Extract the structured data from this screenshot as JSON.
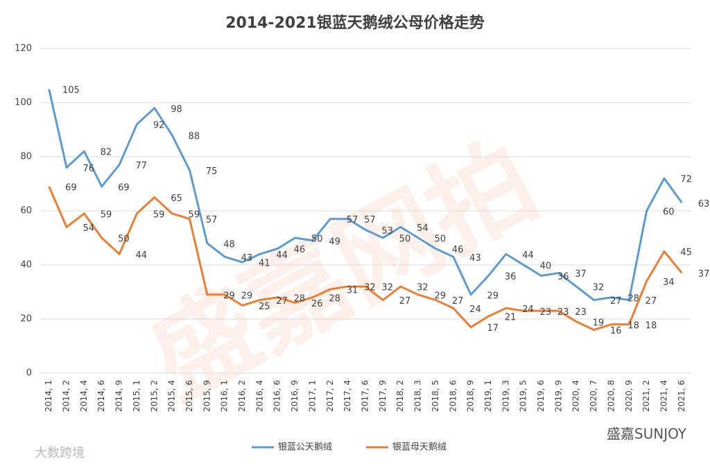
{
  "chart_data": {
    "type": "line",
    "title": "2014-2021银蓝天鹅绒公母价格走势",
    "categories": [
      "2014, 1",
      "2014, 2",
      "2014, 4",
      "2014, 6",
      "2014, 9",
      "2015, 1",
      "2015, 2",
      "2015, 4",
      "2015, 6",
      "2015, 9",
      "2016, 1",
      "2016, 2",
      "2016, 4",
      "2016, 6",
      "2016, 9",
      "2017, 1",
      "2017, 2",
      "2017, 4",
      "2017, 6",
      "2017, 9",
      "2018, 2",
      "2018, 3",
      "2018, 5",
      "2018, 6",
      "2018, 9",
      "2019, 1",
      "2019, 3",
      "2019, 5",
      "2019, 6",
      "2019, 9",
      "2020, 4",
      "2020, 7",
      "2020, 8",
      "2020, 9",
      "2021, 2",
      "2021, 4",
      "2021, 6"
    ],
    "series": [
      {
        "name": "银蓝公天鹅绒",
        "color": "#5b9bd5",
        "values": [
          105,
          76,
          82,
          69,
          77,
          92,
          98,
          88,
          75,
          48,
          43,
          41,
          44,
          46,
          50,
          49,
          57,
          57,
          53,
          50,
          54,
          50,
          46,
          43,
          29,
          36,
          44,
          40,
          36,
          37,
          32,
          27,
          28,
          27,
          60,
          72,
          63
        ]
      },
      {
        "name": "银蓝母天鹅绒",
        "color": "#ed7d31",
        "values": [
          69,
          54,
          59,
          50,
          44,
          59,
          65,
          59,
          57,
          29,
          29,
          25,
          27,
          28,
          26,
          28,
          31,
          32,
          32,
          27,
          32,
          29,
          27,
          24,
          17,
          21,
          24,
          23,
          23,
          23,
          19,
          16,
          18,
          18,
          34,
          45,
          37
        ]
      }
    ],
    "ylim": [
      0,
      120
    ],
    "yticks": [
      0,
      20,
      40,
      60,
      80,
      100,
      120
    ],
    "grid": true,
    "legend": "bottom",
    "watermark": "盛嘉网拍",
    "footer_left": "大数跨境",
    "footer_right": "盛嘉SUNJOY"
  }
}
